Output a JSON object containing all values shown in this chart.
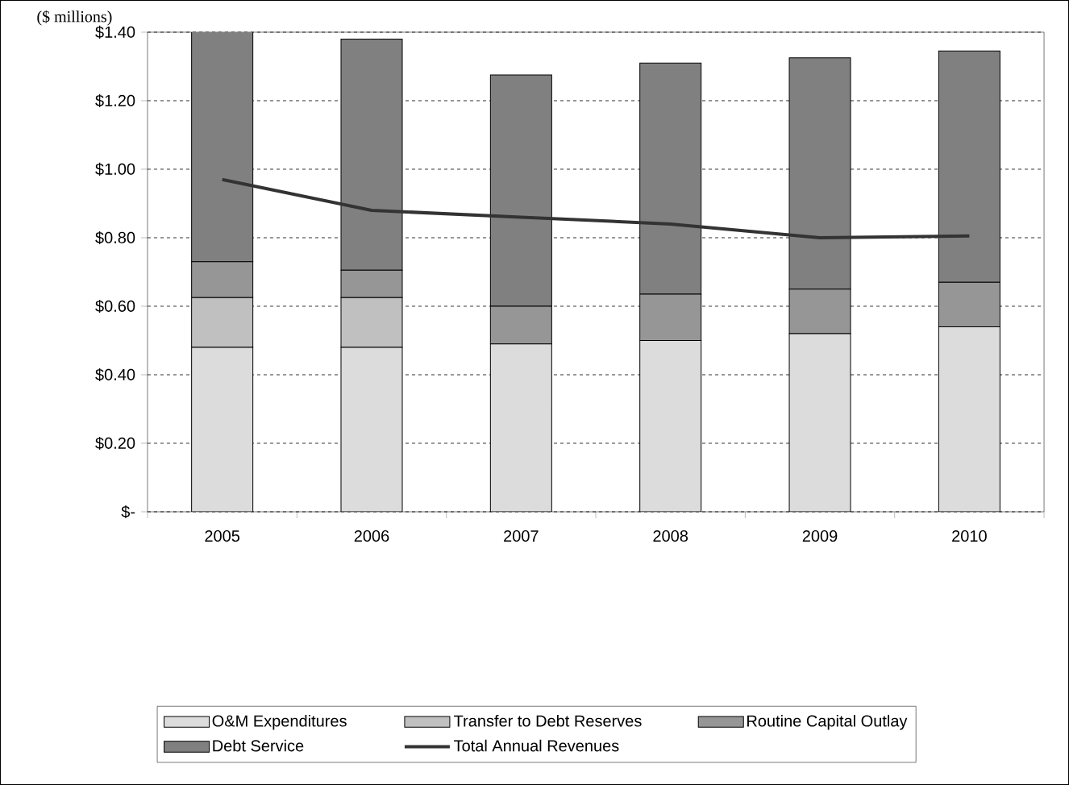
{
  "chart_data": {
    "type": "bar",
    "stacked": true,
    "ylabel": "($ millions)",
    "categories": [
      "2005",
      "2006",
      "2007",
      "2008",
      "2009",
      "2010"
    ],
    "series": [
      {
        "name": "O&M Expenditures",
        "color": "#dcdcdc",
        "values": [
          0.48,
          0.48,
          0.49,
          0.5,
          0.52,
          0.54
        ]
      },
      {
        "name": "Transfer to Debt Reserves",
        "color": "#c0c0c0",
        "values": [
          0.145,
          0.145,
          0,
          0,
          0,
          0
        ]
      },
      {
        "name": "Routine Capital Outlay",
        "color": "#969696",
        "values": [
          0.105,
          0.08,
          0.11,
          0.135,
          0.13,
          0.13
        ]
      },
      {
        "name": "Debt Service",
        "color": "#808080",
        "values": [
          0.675,
          0.675,
          0.675,
          0.675,
          0.675,
          0.675
        ]
      },
      {
        "name": "Total Annual Revenues",
        "type": "line",
        "color": "#333333",
        "values": [
          0.97,
          0.88,
          0.86,
          0.84,
          0.8,
          0.805
        ]
      }
    ],
    "ylim": [
      0,
      1.4
    ],
    "yticks": [
      {
        "value": 0,
        "label": "$-"
      },
      {
        "value": 0.2,
        "label": "$0.20"
      },
      {
        "value": 0.4,
        "label": "$0.40"
      },
      {
        "value": 0.6,
        "label": "$0.60"
      },
      {
        "value": 0.8,
        "label": "$0.80"
      },
      {
        "value": 1.0,
        "label": "$1.00"
      },
      {
        "value": 1.2,
        "label": "$1.20"
      },
      {
        "value": 1.4,
        "label": "$1.40"
      }
    ],
    "grid": "y",
    "legend": "bottom",
    "marker": "none",
    "line_style": "solid"
  }
}
